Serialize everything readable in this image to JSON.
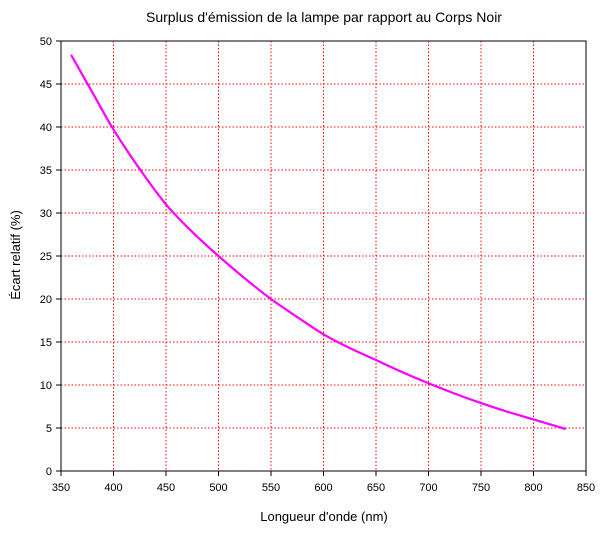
{
  "chart_data": {
    "type": "line",
    "title": "Surplus d'émission de la lampe par rapport au Corps Noir",
    "xlabel": "Longueur d'onde (nm)",
    "ylabel": "Écart relatif (%)",
    "xlim": [
      350,
      850
    ],
    "ylim": [
      0,
      50
    ],
    "x_ticks": [
      350,
      400,
      450,
      500,
      550,
      600,
      650,
      700,
      750,
      800,
      850
    ],
    "y_ticks": [
      0,
      5,
      10,
      15,
      20,
      25,
      30,
      35,
      40,
      45,
      50
    ],
    "grid": true,
    "series": [
      {
        "color": "#ff00ff",
        "x": [
          360,
          380,
          400,
          425,
          450,
          475,
          500,
          525,
          550,
          575,
          600,
          625,
          650,
          675,
          700,
          725,
          750,
          775,
          800,
          830
        ],
        "y": [
          48.3,
          44.0,
          39.7,
          35.1,
          31.0,
          27.8,
          25.0,
          22.4,
          20.0,
          17.9,
          15.9,
          14.3,
          12.9,
          11.5,
          10.2,
          9.0,
          7.9,
          6.9,
          6.0,
          4.9
        ]
      }
    ]
  }
}
